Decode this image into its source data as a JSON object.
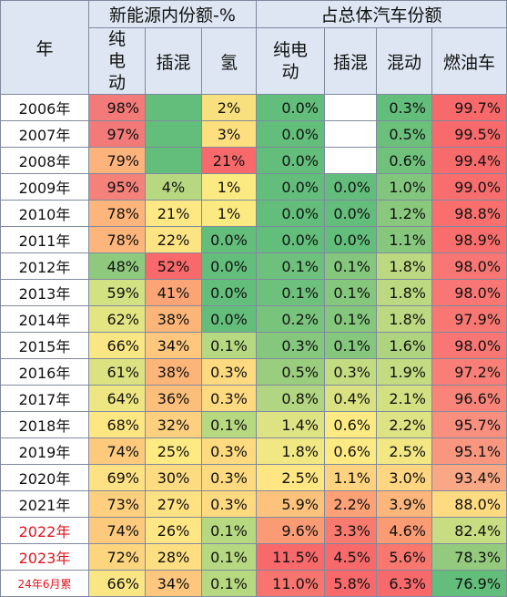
{
  "headers": {
    "year": "年",
    "group1": "新能源内份额-%",
    "group2": "占总体汽车份额",
    "nev_bev": "纯电动",
    "nev_phev": "插混",
    "nev_fcv": "氢",
    "tot_bev": "纯电动",
    "tot_phev": "插混",
    "tot_hev": "混动",
    "tot_ice": "燃油车"
  },
  "rows": [
    {
      "year": "2006年",
      "a": "98%",
      "b": "",
      "c": "2%",
      "d": "0.0%",
      "e": "",
      "f": "0.3%",
      "g": "99.7%",
      "ca": "#f27a78",
      "cb": "#63be7b",
      "cc": "#f8e07e",
      "cd": "#63be7b",
      "ce": "#ffffff",
      "cf": "#63be7b",
      "cg": "#f8696b"
    },
    {
      "year": "2007年",
      "a": "97%",
      "b": "",
      "c": "3%",
      "d": "0.0%",
      "e": "",
      "f": "0.5%",
      "g": "99.5%",
      "ca": "#f27a78",
      "cb": "#63be7b",
      "cc": "#fddf7f",
      "cd": "#63be7b",
      "ce": "#ffffff",
      "cf": "#6bc07c",
      "cg": "#f86a6b"
    },
    {
      "year": "2008年",
      "a": "79%",
      "b": "",
      "c": "21%",
      "d": "0.0%",
      "e": "",
      "f": "0.6%",
      "g": "99.4%",
      "ca": "#fdb37b",
      "cb": "#63be7b",
      "cc": "#f8696b",
      "cd": "#63be7b",
      "ce": "#ffffff",
      "cf": "#6fc17c",
      "cg": "#f86b6b"
    },
    {
      "year": "2009年",
      "a": "95%",
      "b": "4%",
      "c": "1%",
      "d": "0.0%",
      "e": "0.0%",
      "f": "1.0%",
      "g": "99.0%",
      "ca": "#f4827a",
      "cb": "#b7d880",
      "cc": "#fbe982",
      "cd": "#63be7b",
      "ce": "#63be7b",
      "cf": "#82c67d",
      "cg": "#f86d6d"
    },
    {
      "year": "2010年",
      "a": "78%",
      "b": "21%",
      "c": "1%",
      "d": "0.0%",
      "e": "0.0%",
      "f": "1.2%",
      "g": "98.8%",
      "ca": "#fdb57b",
      "cb": "#fde883",
      "cc": "#fbe982",
      "cd": "#63be7b",
      "ce": "#63be7b",
      "cf": "#8ac87d",
      "cg": "#f86f6e"
    },
    {
      "year": "2011年",
      "a": "78%",
      "b": "22%",
      "c": "0.0%",
      "d": "0.0%",
      "e": "0.0%",
      "f": "1.1%",
      "g": "98.9%",
      "ca": "#fdb57b",
      "cb": "#fde483",
      "cc": "#63be7b",
      "cd": "#63be7b",
      "ce": "#63be7b",
      "cf": "#86c77d",
      "cg": "#f86e6d"
    },
    {
      "year": "2012年",
      "a": "48%",
      "b": "52%",
      "c": "0.0%",
      "d": "0.1%",
      "e": "0.1%",
      "f": "1.8%",
      "g": "98.0%",
      "ca": "#8ec97e",
      "cb": "#f8696b",
      "cc": "#63be7b",
      "cd": "#6ec17c",
      "ce": "#84c77d",
      "cf": "#bcd981",
      "cg": "#f87673"
    },
    {
      "year": "2013年",
      "a": "59%",
      "b": "41%",
      "c": "0.0%",
      "d": "0.1%",
      "e": "0.1%",
      "f": "1.8%",
      "g": "98.0%",
      "ca": "#d2e182",
      "cb": "#fba576",
      "cc": "#63be7b",
      "cd": "#6ec17c",
      "ce": "#84c77d",
      "cf": "#bcd981",
      "cg": "#f87673"
    },
    {
      "year": "2014年",
      "a": "62%",
      "b": "38%",
      "c": "0.0%",
      "d": "0.2%",
      "e": "0.1%",
      "f": "1.8%",
      "g": "97.9%",
      "ca": "#e3e482",
      "cb": "#fcb579",
      "cc": "#63be7b",
      "cd": "#79c47d",
      "ce": "#84c77d",
      "cf": "#bcd981",
      "cg": "#f87773"
    },
    {
      "year": "2015年",
      "a": "66%",
      "b": "34%",
      "c": "0.1%",
      "d": "0.3%",
      "e": "0.1%",
      "f": "1.6%",
      "g": "98.0%",
      "ca": "#fae683",
      "cb": "#fdc77d",
      "cc": "#b6d880",
      "cd": "#84c77d",
      "ce": "#84c77d",
      "cf": "#aed47f",
      "cg": "#f87673"
    },
    {
      "year": "2016年",
      "a": "61%",
      "b": "38%",
      "c": "0.3%",
      "d": "0.5%",
      "e": "0.3%",
      "f": "1.9%",
      "g": "97.2%",
      "ca": "#dce282",
      "cb": "#fcb579",
      "cc": "#fdda80",
      "cd": "#9acd7e",
      "ce": "#c4dc81",
      "cf": "#c3db81",
      "cg": "#f87e77"
    },
    {
      "year": "2017年",
      "a": "64%",
      "b": "36%",
      "c": "0.3%",
      "d": "0.8%",
      "e": "0.4%",
      "f": "2.1%",
      "g": "96.6%",
      "ca": "#eee682",
      "cb": "#fcbe7b",
      "cc": "#fdda80",
      "cd": "#b1d580",
      "ce": "#d9e182",
      "cf": "#d3e082",
      "cg": "#f9857a"
    },
    {
      "year": "2018年",
      "a": "68%",
      "b": "32%",
      "c": "0.1%",
      "d": "1.4%",
      "e": "0.6%",
      "f": "2.2%",
      "g": "95.7%",
      "ca": "#fee783",
      "cb": "#fdd07f",
      "cc": "#b6d880",
      "cd": "#dde282",
      "ce": "#feea83",
      "cf": "#dde282",
      "cg": "#f98f7e"
    },
    {
      "year": "2019年",
      "a": "74%",
      "b": "25%",
      "c": "0.3%",
      "d": "1.8%",
      "e": "0.6%",
      "f": "2.5%",
      "g": "95.1%",
      "ca": "#fdc97d",
      "cb": "#fdea83",
      "cc": "#fdda80",
      "cd": "#f2e883",
      "ce": "#feea83",
      "cf": "#f2e783",
      "cg": "#f99680"
    },
    {
      "year": "2020年",
      "a": "69%",
      "b": "30%",
      "c": "0.3%",
      "d": "2.5%",
      "e": "1.1%",
      "f": "3.0%",
      "g": "93.4%",
      "ca": "#fee182",
      "cb": "#fddb81",
      "cc": "#fdda80",
      "cd": "#fee683",
      "ce": "#fdd37f",
      "cf": "#fed580",
      "cg": "#f9a784"
    },
    {
      "year": "2021年",
      "a": "73%",
      "b": "27%",
      "c": "0.3%",
      "d": "5.9%",
      "e": "2.2%",
      "f": "3.9%",
      "g": "88.0%",
      "ca": "#fdcf7e",
      "cb": "#fde182",
      "cc": "#fdda80",
      "cd": "#fdc27c",
      "ce": "#fca276",
      "cf": "#fcb57b",
      "cg": "#fedb81"
    },
    {
      "year": "2022年",
      "a": "74%",
      "b": "26%",
      "c": "0.1%",
      "d": "9.6%",
      "e": "3.3%",
      "f": "4.6%",
      "g": "82.4%",
      "ca": "#fdc97d",
      "cb": "#fde683",
      "cc": "#b6d880",
      "cd": "#fa9b75",
      "ce": "#f97b70",
      "cf": "#fa9b74",
      "cg": "#c8dd81",
      "red": true
    },
    {
      "year": "2023年",
      "a": "72%",
      "b": "28%",
      "c": "0.1%",
      "d": "11.5%",
      "e": "4.5%",
      "f": "5.6%",
      "g": "78.3%",
      "ca": "#fdd57f",
      "cb": "#fddf82",
      "cc": "#b6d880",
      "cd": "#f8696b",
      "ce": "#f8696b",
      "cf": "#f8786f",
      "cg": "#94ca7e",
      "red": true
    },
    {
      "year": "24年6月累",
      "a": "66%",
      "b": "34%",
      "c": "0.1%",
      "d": "11.0%",
      "e": "5.8%",
      "f": "6.3%",
      "g": "76.9%",
      "ca": "#fae683",
      "cb": "#fdc77d",
      "cc": "#b6d880",
      "cd": "#f8746e",
      "ce": "#f8696b",
      "cf": "#f8696b",
      "cg": "#63be7b",
      "red": true,
      "small": true
    }
  ]
}
